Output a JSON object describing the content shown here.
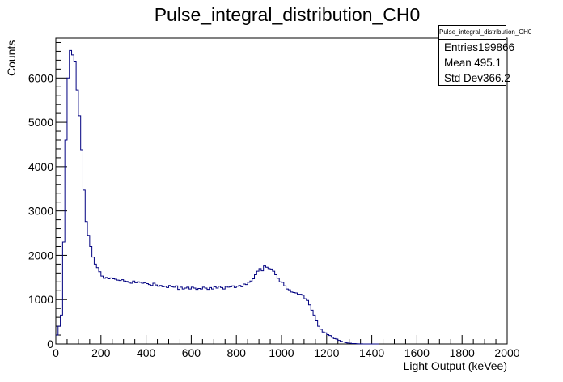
{
  "chart_data": {
    "type": "histogram",
    "title": "Pulse_integral_distribution_CH0",
    "xlabel": "Light Output (keVee)",
    "ylabel": "Counts",
    "xlim": [
      0,
      2000
    ],
    "ylim": [
      0,
      6900
    ],
    "bin_width": 10,
    "x_ticks": [
      0,
      200,
      400,
      600,
      800,
      1000,
      1200,
      1400,
      1600,
      1800,
      2000
    ],
    "y_ticks": [
      0,
      1000,
      2000,
      3000,
      4000,
      5000,
      6000
    ],
    "series_color": "#000080",
    "bins_start": [
      0,
      10,
      20,
      30,
      40,
      50,
      60,
      70,
      80,
      90,
      100,
      110,
      120,
      130,
      140,
      150,
      160,
      170,
      180,
      190,
      200,
      210,
      220,
      230,
      240,
      250,
      260,
      270,
      280,
      290,
      300,
      310,
      320,
      330,
      340,
      350,
      360,
      370,
      380,
      390,
      400,
      410,
      420,
      430,
      440,
      450,
      460,
      470,
      480,
      490,
      500,
      510,
      520,
      530,
      540,
      550,
      560,
      570,
      580,
      590,
      600,
      610,
      620,
      630,
      640,
      650,
      660,
      670,
      680,
      690,
      700,
      710,
      720,
      730,
      740,
      750,
      760,
      770,
      780,
      790,
      800,
      810,
      820,
      830,
      840,
      850,
      860,
      870,
      880,
      890,
      900,
      910,
      920,
      930,
      940,
      950,
      960,
      970,
      980,
      990,
      1000,
      1010,
      1020,
      1030,
      1040,
      1050,
      1060,
      1070,
      1080,
      1090,
      1100,
      1110,
      1120,
      1130,
      1140,
      1150,
      1160,
      1170,
      1180,
      1190,
      1200,
      1210,
      1220,
      1230,
      1240,
      1250,
      1260,
      1270,
      1280,
      1290,
      1300,
      1310,
      1320,
      1330,
      1340,
      1350,
      1360,
      1370,
      1380,
      1390,
      1400,
      1410,
      1420
    ],
    "counts": [
      200,
      400,
      650,
      2300,
      4600,
      6000,
      6620,
      6520,
      6380,
      5730,
      5150,
      4380,
      3470,
      2760,
      2450,
      2200,
      1960,
      1800,
      1720,
      1630,
      1530,
      1480,
      1500,
      1470,
      1490,
      1470,
      1460,
      1440,
      1430,
      1450,
      1420,
      1410,
      1390,
      1370,
      1420,
      1380,
      1400,
      1390,
      1370,
      1380,
      1360,
      1340,
      1320,
      1370,
      1330,
      1300,
      1320,
      1290,
      1300,
      1270,
      1320,
      1290,
      1280,
      1310,
      1230,
      1280,
      1240,
      1260,
      1280,
      1240,
      1280,
      1260,
      1230,
      1250,
      1240,
      1280,
      1260,
      1230,
      1270,
      1240,
      1290,
      1260,
      1300,
      1270,
      1240,
      1300,
      1280,
      1290,
      1310,
      1270,
      1300,
      1320,
      1290,
      1350,
      1340,
      1390,
      1420,
      1470,
      1560,
      1640,
      1700,
      1650,
      1760,
      1730,
      1700,
      1690,
      1640,
      1560,
      1480,
      1400,
      1390,
      1310,
      1240,
      1220,
      1170,
      1160,
      1150,
      1120,
      1120,
      1100,
      1020,
      980,
      880,
      760,
      650,
      520,
      400,
      330,
      270,
      250,
      210,
      190,
      150,
      120,
      110,
      80,
      60,
      45,
      30,
      20,
      15,
      10,
      8,
      5,
      3,
      2,
      1,
      0,
      0,
      0,
      0,
      0,
      0
    ]
  },
  "stats": {
    "title": "Pulse_integral_distribution_CH0",
    "rows": [
      {
        "label": "Entries",
        "value": "199866"
      },
      {
        "label": "Mean",
        "value": "495.1"
      },
      {
        "label": "Std Dev",
        "value": "366.2"
      }
    ]
  }
}
